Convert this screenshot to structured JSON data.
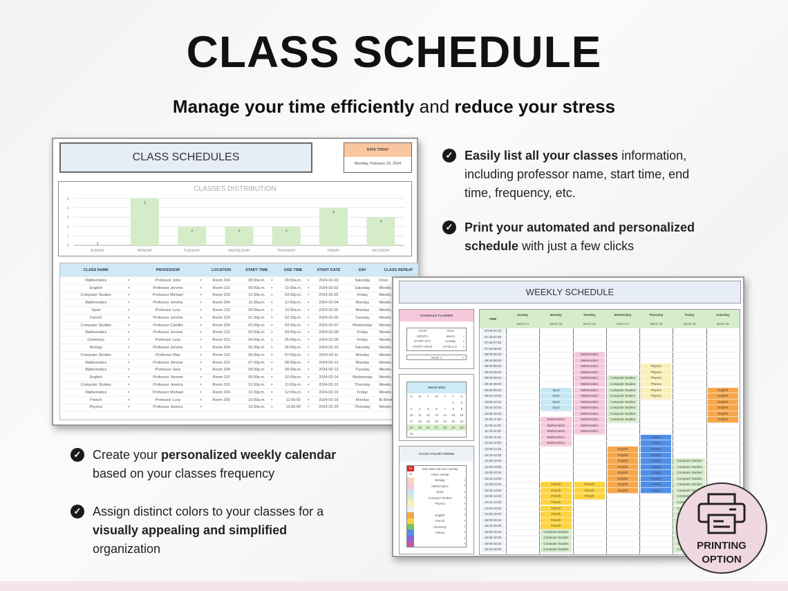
{
  "header": {
    "title": "CLASS SCHEDULE",
    "subtitle": [
      {
        "t": "Manage your time efficiently",
        "b": true
      },
      {
        "t": " and ",
        "b": false
      },
      {
        "t": "reduce your stress",
        "b": true
      }
    ]
  },
  "bullets_right": [
    [
      {
        "t": "Easily list all your classes",
        "b": true
      },
      {
        "t": " information, including professor name, start time, end time, frequency, etc.",
        "b": false
      }
    ],
    [
      {
        "t": "Print your automated and personalized schedule",
        "b": true
      },
      {
        "t": " with just a few clicks",
        "b": false
      }
    ]
  ],
  "bullets_left": [
    [
      {
        "t": "Create your ",
        "b": false
      },
      {
        "t": "personalized weekly calendar",
        "b": true
      },
      {
        "t": " based on your classes frequency",
        "b": false
      }
    ],
    [
      {
        "t": "Assign distinct colors to your classes for a ",
        "b": false
      },
      {
        "t": "visually appealing and simplified",
        "b": true
      },
      {
        "t": " organization",
        "b": false
      }
    ]
  ],
  "class_sheet": {
    "title": "CLASS SCHEDULES",
    "date_label": "DATE TODAY",
    "date_value": "Monday, February 26, 2024",
    "columns": [
      "CLASS NAME",
      "PROFESSOR",
      "LOCATION",
      "START TIME",
      "END TIME",
      "START DATE",
      "DAY",
      "CLASS REPEAT"
    ],
    "rows": [
      [
        "Mathematics",
        "Professor John",
        "Room 204",
        "08:00a.m.",
        "09:00a.m.",
        "2024-02-03",
        "Saturday",
        "Once"
      ],
      [
        "English",
        "Professor Jerome",
        "Room 110",
        "09:30a.m.",
        "11:00a.m.",
        "2024-03-02",
        "Saturday",
        "Weekly"
      ],
      [
        "Computer Studies",
        "Professor Michael",
        "Room 310",
        "12:30p.m.",
        "03:00p.m.",
        "2024-02-02",
        "Friday",
        "Weekly"
      ],
      [
        "Mathematics",
        "Professor Jerome",
        "Room 204",
        "11:30a.m.",
        "12:00p.m.",
        "2024-03-04",
        "Monday",
        "Weekly"
      ],
      [
        "Sport",
        "Professor Lucy",
        "Room 110",
        "09:30a.m.",
        "10:30a.m.",
        "2024-02-05",
        "Monday",
        "Weekly"
      ],
      [
        "French",
        "Professor Jerome",
        "Room 310",
        "01:30p.m.",
        "02:15p.m.",
        "2024-03-05",
        "Tuesday",
        "Weekly"
      ],
      [
        "Computer Studies",
        "Professor Camilla",
        "Room 204",
        "02:30p.m.",
        "03:00p.m.",
        "2024-02-07",
        "Wednesday",
        "Weekly"
      ],
      [
        "Mathematics",
        "Professor Jerome",
        "Room 110",
        "03:30p.m.",
        "04:00p.m.",
        "2024-03-08",
        "Friday",
        "Weekly"
      ],
      [
        "Chemistry",
        "Professor Lucy",
        "Room 310",
        "04:30p.m.",
        "05:00p.m.",
        "2024-02-09",
        "Friday",
        "Weekly"
      ],
      [
        "Biology",
        "Professor Jerome",
        "Room 204",
        "05:30p.m.",
        "06:00p.m.",
        "2024-02-10",
        "Saturday",
        "Weekly"
      ],
      [
        "Computer Studies",
        "Professor Max",
        "Room 110",
        "06:30p.m.",
        "07:00p.m.",
        "2024-03-11",
        "Monday",
        "Weekly"
      ],
      [
        "Mathematics",
        "Professor Jerome",
        "Room 310",
        "07:30p.m.",
        "08:00p.m.",
        "2024-02-12",
        "Monday",
        "Weekly"
      ],
      [
        "Mathematics",
        "Professor Jane",
        "Room 204",
        "08:30p.m.",
        "09:00p.m.",
        "2024-02-13",
        "Tuesday",
        "Weekly"
      ],
      [
        "English",
        "Professor Jerome",
        "Room 110",
        "09:30p.m.",
        "10:00p.m.",
        "2024-02-14",
        "Wednesday",
        "Weekly"
      ],
      [
        "Computer Studies",
        "Professor Jessica",
        "Room 310",
        "10:30p.m.",
        "11:00p.m.",
        "2024-02-15",
        "Thursday",
        "Weekly"
      ],
      [
        "Mathematics",
        "Professor Michael",
        "Room 204",
        "11:30p.m.",
        "12:00a.m.",
        "2024-02-16",
        "Friday",
        "Weekly"
      ],
      [
        "French",
        "Professor Lucy",
        "Room 205",
        "10:00a.m.",
        "11:00:00",
        "2024-02-19",
        "Monday",
        "Bi Weekly"
      ],
      [
        "Physics",
        "Professor Jessica",
        "",
        "10:30a.m.",
        "13:00:00",
        "2024-02-29",
        "Thursday",
        "Weekly"
      ]
    ]
  },
  "chart_data": {
    "type": "bar",
    "title": "CLASSES DISTRIBUTION",
    "categories": [
      "SUNDAY",
      "MONDAY",
      "TUESDAY",
      "WEDNESDAY",
      "THURSDAY",
      "FRIDAY",
      "SATURDAY"
    ],
    "values": [
      0,
      5,
      2,
      2,
      2,
      4,
      3
    ],
    "yticks": [
      "0",
      "1",
      "2",
      "3",
      "4",
      "5"
    ],
    "ylim": [
      0,
      5
    ],
    "grid": true,
    "color": "#d4ecc8"
  },
  "weekly_sheet": {
    "title": "WEEKLY SCHEDULE",
    "planner": {
      "title": "SCHEDULE PLANNER",
      "fields": [
        [
          "YEAR",
          "2024"
        ],
        [
          "MONTH",
          "March"
        ],
        [
          "START DAY",
          "Sunday"
        ],
        [
          "START HOUR",
          "07:00 a.m."
        ]
      ],
      "week": "Week 4"
    },
    "calendar": {
      "title": "March 2024",
      "dow": [
        "S",
        "M",
        "T",
        "W",
        "T",
        "F",
        "S"
      ],
      "weeks": [
        [
          "",
          "",
          "",
          "",
          "",
          "1",
          "2"
        ],
        [
          "3",
          "4",
          "5",
          "6",
          "7",
          "8",
          "9"
        ],
        [
          "10",
          "11",
          "12",
          "13",
          "14",
          "15",
          "16"
        ],
        [
          "17",
          "18",
          "19",
          "20",
          "21",
          "22",
          "23"
        ],
        [
          "24",
          "25",
          "26",
          "27",
          "28",
          "29",
          "30"
        ],
        [
          "31",
          "",
          "",
          "",
          "",
          "",
          ""
        ]
      ],
      "highlight_week": 4
    },
    "legend": {
      "title": "CLASS COLOR CODING",
      "items": [
        {
          "label": "Start date and hour overlap",
          "tag": "01",
          "color": "#e02424"
        },
        {
          "label": "Class overlap",
          "tag": "01",
          "color": "#ffffff"
        },
        {
          "label": "Biology",
          "color": "#fbd2b8"
        },
        {
          "label": "Mathematics",
          "color": "#f7c8dc"
        },
        {
          "label": "Sport",
          "color": "#c6e8f3"
        },
        {
          "label": "Computer Studies",
          "color": "#d6edcb"
        },
        {
          "label": "Physics",
          "color": "#fbf0b8"
        },
        {
          "label": "",
          "color": "#edf1f6"
        },
        {
          "label": "English",
          "color": "#f7a64a"
        },
        {
          "label": "French",
          "color": "#fcd43f"
        },
        {
          "label": "Chemistry",
          "color": "#7cc35a"
        },
        {
          "label": "History",
          "color": "#4f8fe8"
        },
        {
          "label": "",
          "color": "#8a64d6"
        },
        {
          "label": "",
          "color": "#c05aa8"
        }
      ]
    },
    "time_header": "TIME",
    "days": [
      [
        "Sunday",
        "March 24"
      ],
      [
        "Monday",
        "March 25"
      ],
      [
        "Tuesday",
        "March 26"
      ],
      [
        "Wednesday",
        "March 27"
      ],
      [
        "Thursday",
        "March 28"
      ],
      [
        "Friday",
        "March 29"
      ],
      [
        "Saturday",
        "March 30"
      ]
    ],
    "slots": [
      "07:00-07:15",
      "07:15-07:30",
      "07:30-07:45",
      "07:45-08:00",
      "08:00-08:15",
      "08:15-08:30",
      "08:30-08:45",
      "08:45-09:00",
      "09:00-09:15",
      "09:15-09:30",
      "09:30-09:45",
      "09:45-10:00",
      "10:00-10:15",
      "10:15-10:30",
      "10:30-10:45",
      "10:45-11:00",
      "11:00-11:15",
      "11:15-11:30",
      "11:30-11:45",
      "11:45-12:00",
      "12:00-12:15",
      "12:15-12:30",
      "12:30-12:45",
      "12:45-13:00",
      "13:00-13:15",
      "13:15-13:30",
      "13:30-13:45",
      "13:45-14:00",
      "14:00-14:15",
      "14:15-14:30",
      "14:30-14:45",
      "14:45-15:00",
      "15:00-15:15",
      "15:15-15:30",
      "15:30-15:45",
      "15:45-16:00",
      "16:00-16:15",
      "16:15-16:30"
    ],
    "events": [
      {
        "day": 2,
        "class": "Mathematics",
        "from": "08:00",
        "to": "11:30",
        "color": "#f7c8dc"
      },
      {
        "day": 4,
        "class": "Physics",
        "from": "08:30",
        "to": "10:00",
        "color": "#fbf0b8"
      },
      {
        "day": 3,
        "class": "Computer Studies",
        "from": "09:00",
        "to": "11:00",
        "color": "#d6edcb"
      },
      {
        "day": 1,
        "class": "Sport",
        "from": "09:30",
        "to": "10:30",
        "color": "#c6e8f3"
      },
      {
        "day": 6,
        "class": "English",
        "from": "09:30",
        "to": "11:00",
        "color": "#f7a64a"
      },
      {
        "day": 1,
        "class": "Mathematics",
        "from": "10:45",
        "to": "12:00",
        "color": "#f7c8dc"
      },
      {
        "day": 4,
        "class": "History",
        "from": "11:30",
        "to": "14:00",
        "color": "#4f8fe8"
      },
      {
        "day": 3,
        "class": "English",
        "from": "12:00",
        "to": "14:00",
        "color": "#f7a64a"
      },
      {
        "day": 5,
        "class": "Computer Studies",
        "from": "12:30",
        "to": "16:30",
        "color": "#d6edcb"
      },
      {
        "day": 1,
        "class": "French",
        "from": "13:30",
        "to": "15:30",
        "color": "#fcd43f"
      },
      {
        "day": 2,
        "class": "French",
        "from": "13:30",
        "to": "14:15",
        "color": "#fcd43f"
      },
      {
        "day": 1,
        "class": "Computer Studies",
        "from": "15:30",
        "to": "16:30",
        "color": "#d6edcb"
      }
    ]
  },
  "print_badge": {
    "line1": "PRINTING",
    "line2": "OPTION",
    "icon": "printer-icon"
  },
  "colors": {
    "accent_pink": "#f0d8e3",
    "header_blue": "#e6edf7",
    "table_header": "#cfeaf6",
    "date_orange": "#f9c6a0"
  }
}
